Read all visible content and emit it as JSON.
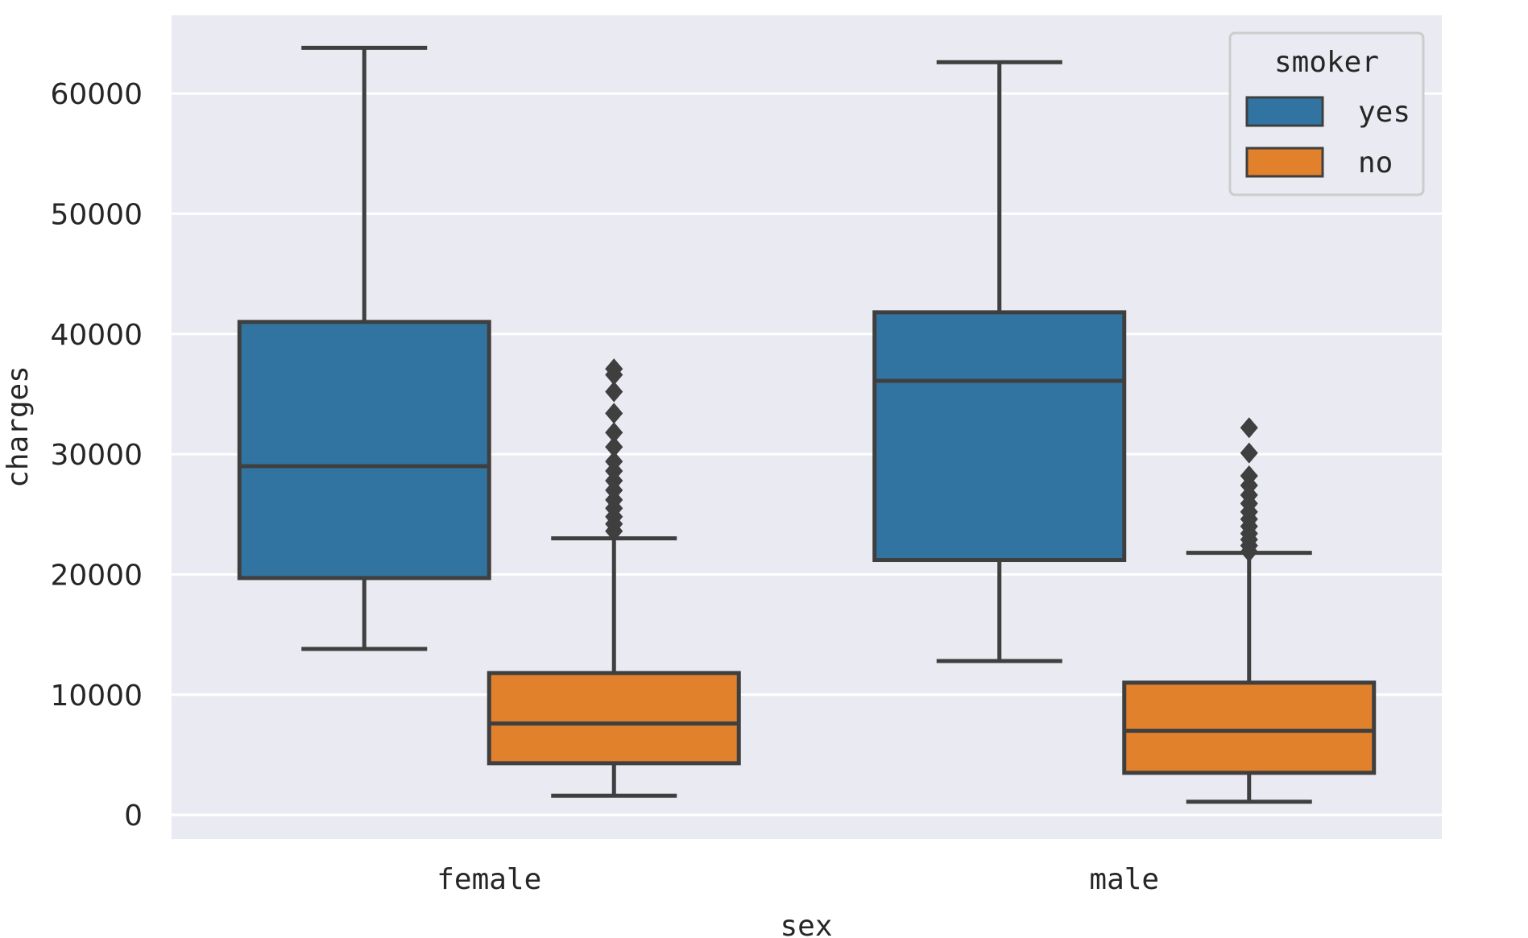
{
  "chart_data": {
    "type": "box",
    "xlabel": "sex",
    "ylabel": "charges",
    "categories": [
      "female",
      "male"
    ],
    "ylim": [
      -2000,
      66500
    ],
    "yticks": [
      0,
      10000,
      20000,
      30000,
      40000,
      50000,
      60000
    ],
    "ytick_labels": [
      "0",
      "10000",
      "20000",
      "30000",
      "40000",
      "50000",
      "60000"
    ],
    "grid": true,
    "legend": {
      "title": "smoker",
      "position": "top-right"
    },
    "series": [
      {
        "name": "yes",
        "color": "#3274a1",
        "boxes": [
          {
            "category": "female",
            "whisker_low": 13800,
            "q1": 19700,
            "median": 29000,
            "q3": 41000,
            "whisker_high": 63800,
            "outliers": []
          },
          {
            "category": "male",
            "whisker_low": 12800,
            "q1": 21200,
            "median": 36100,
            "q3": 41800,
            "whisker_high": 62600,
            "outliers": []
          }
        ]
      },
      {
        "name": "no",
        "color": "#e1812c",
        "boxes": [
          {
            "category": "female",
            "whisker_low": 1600,
            "q1": 4300,
            "median": 7600,
            "q3": 11800,
            "whisker_high": 23000,
            "outliers": [
              23600,
              24200,
              24800,
              25500,
              26200,
              27000,
              27800,
              28600,
              29400,
              30600,
              31800,
              33400,
              35200,
              36600,
              37100
            ]
          },
          {
            "category": "male",
            "whisker_low": 1100,
            "q1": 3500,
            "median": 7000,
            "q3": 11000,
            "whisker_high": 21800,
            "outliers": [
              21900,
              22400,
              22900,
              23400,
              24000,
              24600,
              25200,
              25900,
              26600,
              27400,
              28200,
              30100,
              32200
            ]
          }
        ]
      }
    ]
  }
}
